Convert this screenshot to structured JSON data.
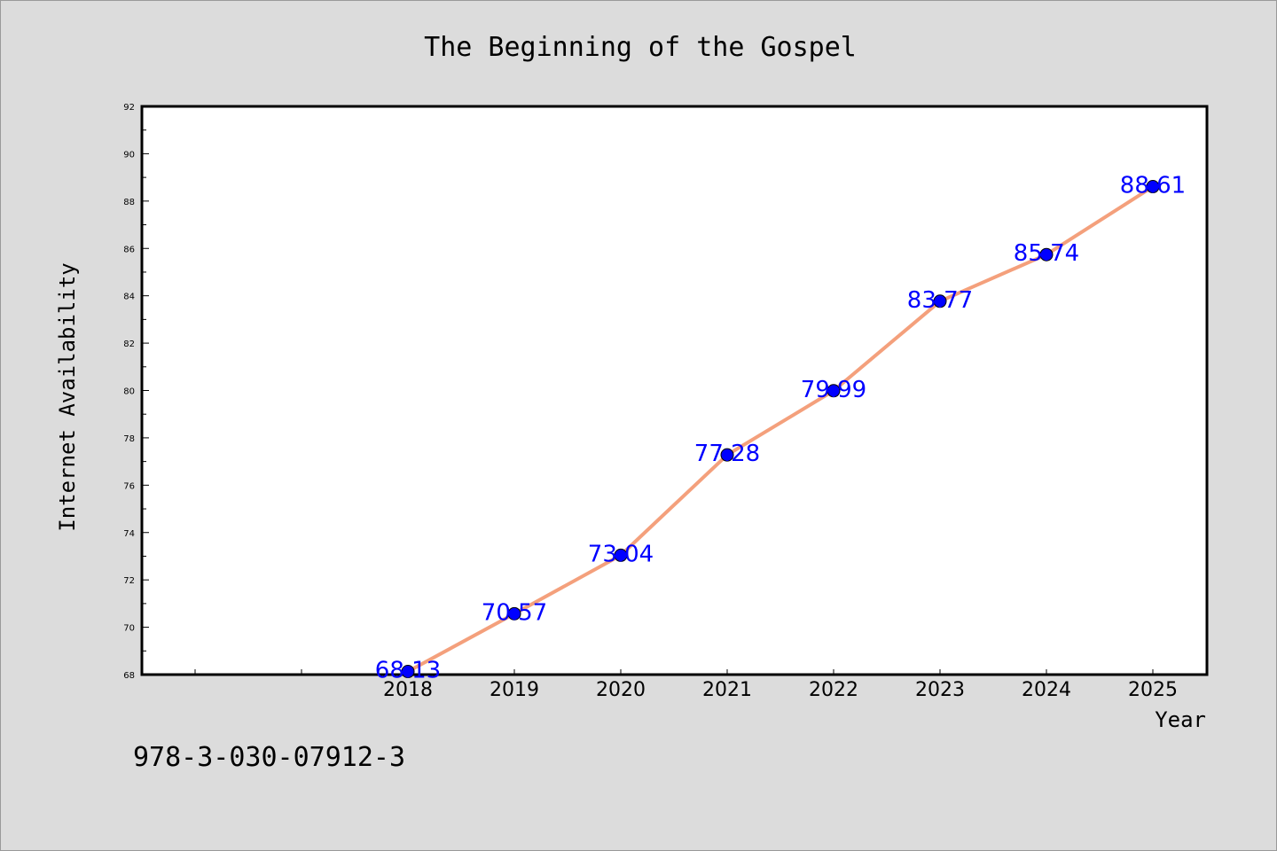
{
  "chart_data": {
    "type": "line",
    "title": "The Beginning of the Gospel",
    "xlabel": "Year",
    "ylabel": "Internet Availability",
    "categories": [
      "2018",
      "2019",
      "2020",
      "2021",
      "2022",
      "2023",
      "2024",
      "2025"
    ],
    "values": [
      68.13,
      70.57,
      73.04,
      77.28,
      79.99,
      83.77,
      85.74,
      88.61
    ],
    "data_labels": [
      "68.13",
      "70.57",
      "73.04",
      "77.28",
      "79.99",
      "83.77",
      "85.74",
      "88.61"
    ],
    "ylim": [
      68,
      92
    ],
    "yticks": [
      68,
      70,
      72,
      74,
      76,
      78,
      80,
      82,
      84,
      86,
      88,
      90,
      92
    ],
    "grid": false,
    "line_color": "#f4a07c",
    "marker_color": "#0000ff",
    "label_color": "#0000ff"
  },
  "footer": {
    "isbn": "978-3-030-07912-3"
  }
}
